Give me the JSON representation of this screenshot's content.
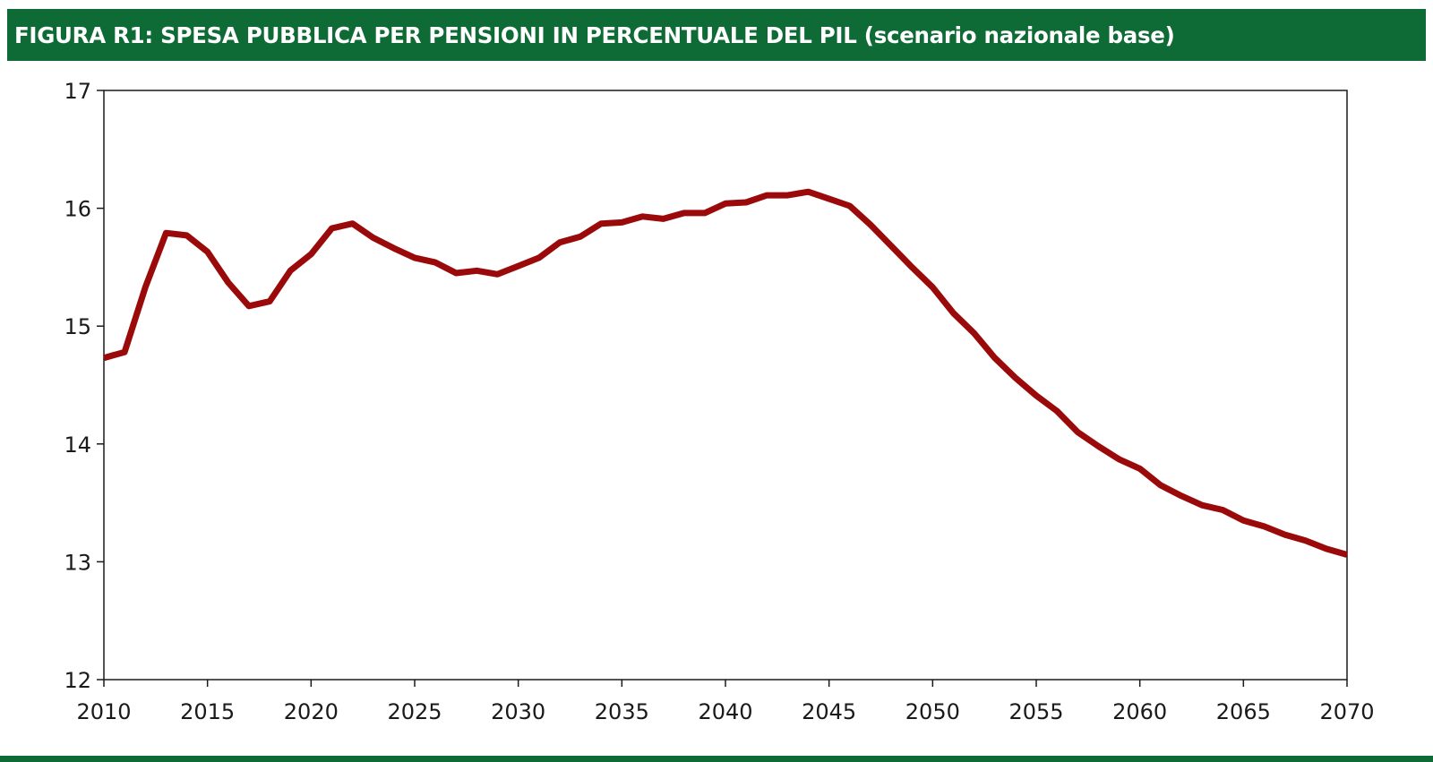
{
  "title": "FIGURA R1: SPESA PUBBLICA PER PENSIONI IN PERCENTUALE DEL PIL (scenario nazionale base)",
  "colors": {
    "header_bg": "#0e6b35",
    "header_text": "#ffffff",
    "series_line": "#9b0a0a",
    "axis": "#1a1a1a"
  },
  "chart_data": {
    "type": "line",
    "title": "FIGURA R1: SPESA PUBBLICA PER PENSIONI IN PERCENTUALE DEL PIL (scenario nazionale base)",
    "xlabel": "",
    "ylabel": "",
    "xlim": [
      2010,
      2070
    ],
    "ylim": [
      12,
      17
    ],
    "x_ticks": [
      "2010",
      "2015",
      "2020",
      "2025",
      "2030",
      "2035",
      "2040",
      "2045",
      "2050",
      "2055",
      "2060",
      "2065",
      "2070"
    ],
    "y_ticks": [
      "12",
      "13",
      "14",
      "15",
      "16",
      "17"
    ],
    "grid": false,
    "legend": "none",
    "series": [
      {
        "x": [
          2010,
          2011,
          2012,
          2013,
          2014,
          2015,
          2016,
          2017,
          2018,
          2019,
          2020,
          2021,
          2022,
          2023,
          2024,
          2025,
          2026,
          2027,
          2028,
          2029,
          2030,
          2031,
          2032,
          2033,
          2034,
          2035,
          2036,
          2037,
          2038,
          2039,
          2040,
          2041,
          2042,
          2043,
          2044,
          2045,
          2046,
          2047,
          2048,
          2049,
          2050,
          2051,
          2052,
          2053,
          2054,
          2055,
          2056,
          2057,
          2058,
          2059,
          2060,
          2061,
          2062,
          2063,
          2064,
          2065,
          2066,
          2067,
          2068,
          2069,
          2070
        ],
        "values": [
          14.73,
          14.78,
          15.33,
          15.79,
          15.77,
          15.63,
          15.37,
          15.17,
          15.21,
          15.47,
          15.61,
          15.83,
          15.87,
          15.75,
          15.66,
          15.58,
          15.54,
          15.45,
          15.47,
          15.44,
          15.51,
          15.58,
          15.71,
          15.76,
          15.87,
          15.88,
          15.93,
          15.91,
          15.96,
          15.96,
          16.04,
          16.05,
          16.11,
          16.11,
          16.14,
          16.08,
          16.02,
          15.86,
          15.68,
          15.5,
          15.33,
          15.11,
          14.94,
          14.73,
          14.56,
          14.41,
          14.28,
          14.1,
          13.98,
          13.87,
          13.79,
          13.65,
          13.56,
          13.48,
          13.44,
          13.35,
          13.3,
          13.23,
          13.18,
          13.11,
          13.06
        ]
      }
    ]
  }
}
